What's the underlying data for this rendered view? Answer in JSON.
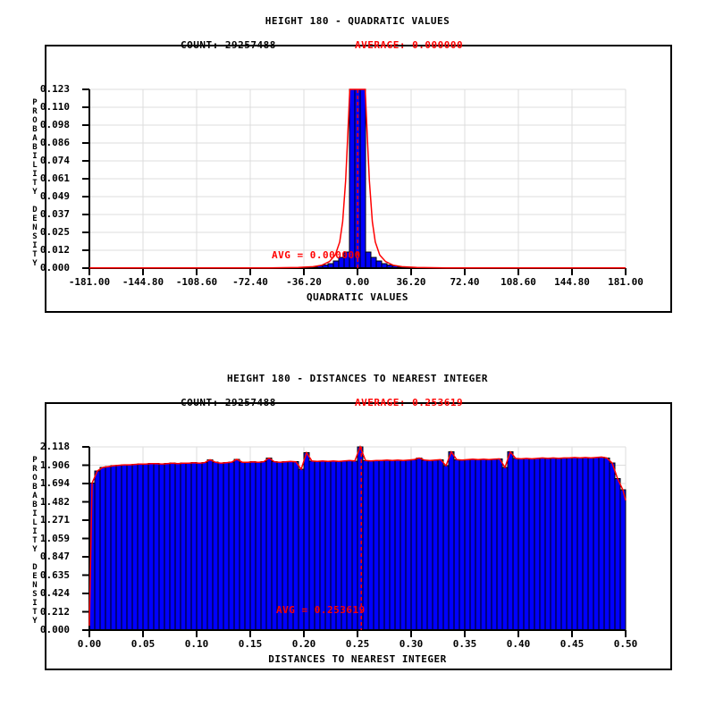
{
  "page": {
    "background": "#ffffff"
  },
  "colors": {
    "bar_fill": "#0000ff",
    "bar_edge": "#000000",
    "curve_red": "#ff0000",
    "grid_gray": "#dcdcdc",
    "axis_black": "#000000",
    "text_black": "#000000"
  },
  "chart_data": [
    {
      "type": "bar",
      "title": "HEIGHT 180 - QUADRATIC VALUES",
      "count_label": "COUNT: 29257488",
      "count": 29257488,
      "average_label": "AVERAGE: 0.000000",
      "average": 0.0,
      "avg_annotation": "AVG = 0.000000",
      "xlabel": "QUADRATIC VALUES",
      "ylabel": "PROBABILITY DENSITY",
      "xlim": [
        -181,
        181
      ],
      "ylim": [
        0,
        0.123
      ],
      "x_ticks": [
        "-181.00",
        "-144.80",
        "-108.60",
        "-72.40",
        "-36.20",
        "0.00",
        "36.20",
        "72.40",
        "108.60",
        "144.80",
        "181.00"
      ],
      "y_ticks": [
        "0.123",
        "0.110",
        "0.098",
        "0.086",
        "0.074",
        "0.061",
        "0.049",
        "0.037",
        "0.025",
        "0.012",
        "0.000"
      ],
      "grid": true,
      "bin_width": 3.62,
      "bars_start_x": -34.39,
      "bar_values": [
        0.0005,
        0.0009,
        0.0015,
        0.0021,
        0.0032,
        0.0048,
        0.0075,
        0.011,
        0.123,
        0.123,
        0.123,
        0.011,
        0.0075,
        0.0048,
        0.0032,
        0.0021,
        0.0015,
        0.0009,
        0.0005
      ],
      "curve_points": [
        [
          -181,
          0.0002
        ],
        [
          -60,
          0.0002
        ],
        [
          -40,
          0.0004
        ],
        [
          -30,
          0.001
        ],
        [
          -24,
          0.002
        ],
        [
          -19,
          0.0045
        ],
        [
          -15,
          0.009
        ],
        [
          -12,
          0.018
        ],
        [
          -10,
          0.032
        ],
        [
          -8,
          0.06
        ],
        [
          -7,
          0.082
        ],
        [
          -6,
          0.105
        ],
        [
          -5.2,
          0.123
        ],
        [
          5.2,
          0.123
        ],
        [
          6,
          0.105
        ],
        [
          7,
          0.082
        ],
        [
          8,
          0.06
        ],
        [
          10,
          0.032
        ],
        [
          12,
          0.018
        ],
        [
          15,
          0.009
        ],
        [
          19,
          0.0045
        ],
        [
          24,
          0.002
        ],
        [
          30,
          0.001
        ],
        [
          40,
          0.0004
        ],
        [
          60,
          0.0002
        ],
        [
          181,
          0.0002
        ]
      ]
    },
    {
      "type": "bar",
      "title": "HEIGHT 180 - DISTANCES TO NEAREST INTEGER",
      "count_label": "COUNT: 29257488",
      "count": 29257488,
      "average_label": "AVERAGE: 0.253619",
      "average": 0.253619,
      "avg_annotation": "AVG = 0.253619",
      "xlabel": "DISTANCES TO NEAREST INTEGER",
      "ylabel": "PROBABILITY DENSITY",
      "xlim": [
        0,
        0.5
      ],
      "ylim": [
        0,
        2.118
      ],
      "x_ticks": [
        "0.00",
        "0.05",
        "0.10",
        "0.15",
        "0.20",
        "0.25",
        "0.30",
        "0.35",
        "0.40",
        "0.45",
        "0.50"
      ],
      "y_ticks": [
        "2.118",
        "1.906",
        "1.694",
        "1.482",
        "1.271",
        "1.059",
        "0.847",
        "0.635",
        "0.424",
        "0.212",
        "0.000"
      ],
      "grid": true,
      "bin_width": 0.005,
      "bars_start_x": 0,
      "bar_values": [
        1.7,
        1.84,
        1.88,
        1.89,
        1.9,
        1.905,
        1.91,
        1.91,
        1.915,
        1.92,
        1.92,
        1.925,
        1.925,
        1.92,
        1.925,
        1.93,
        1.925,
        1.93,
        1.93,
        1.935,
        1.93,
        1.935,
        1.97,
        1.94,
        1.93,
        1.935,
        1.94,
        1.975,
        1.94,
        1.94,
        1.945,
        1.94,
        1.945,
        1.99,
        1.945,
        1.94,
        1.945,
        1.95,
        1.945,
        1.86,
        2.05,
        1.955,
        1.95,
        1.955,
        1.95,
        1.955,
        1.95,
        1.955,
        1.96,
        1.955,
        2.118,
        1.96,
        1.955,
        1.96,
        1.96,
        1.965,
        1.96,
        1.965,
        1.96,
        1.965,
        1.97,
        1.99,
        1.965,
        1.96,
        1.965,
        1.97,
        1.9,
        2.06,
        1.97,
        1.965,
        1.97,
        1.975,
        1.97,
        1.975,
        1.97,
        1.975,
        1.98,
        1.88,
        2.06,
        1.985,
        1.98,
        1.985,
        1.98,
        1.985,
        1.99,
        1.985,
        1.99,
        1.985,
        1.99,
        1.99,
        1.995,
        1.99,
        1.995,
        1.99,
        1.995,
        2.0,
        1.99,
        1.93,
        1.75,
        1.62
      ],
      "curve_from_bars": true,
      "curve_prepend": [
        [
          0.0,
          0.05
        ]
      ],
      "curve_append": [
        [
          0.5,
          1.5
        ]
      ]
    }
  ]
}
